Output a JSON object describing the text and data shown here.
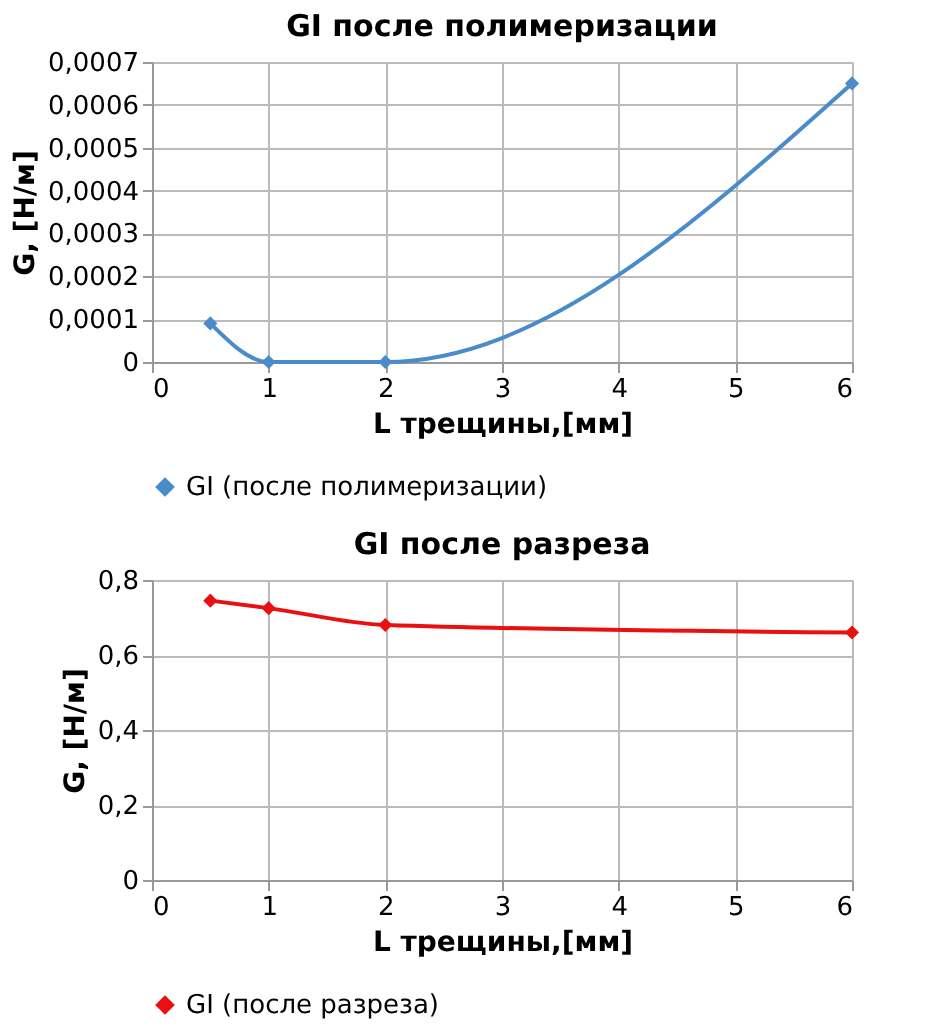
{
  "chart_data": [
    {
      "type": "line",
      "title": "GI после полимеризации",
      "xlabel": "L трещины,[мм]",
      "ylabel": "G, [Н/м]",
      "x": [
        0.5,
        1,
        2,
        6
      ],
      "series": [
        {
          "name": "GI (после полимеризации)",
          "color": "#4a8cc9",
          "values": [
            9e-05,
            0,
            0,
            0.00065
          ]
        }
      ],
      "xlim": [
        0,
        6
      ],
      "xticks": [
        0,
        1,
        2,
        3,
        4,
        5,
        6
      ],
      "ylim": [
        0,
        0.0007
      ],
      "yticks": [
        0,
        {
          "value": 0.0001,
          "label": "0,0001"
        },
        {
          "value": 0.0002,
          "label": "0,0002"
        },
        {
          "value": 0.0003,
          "label": "0,0003"
        },
        {
          "value": 0.0004,
          "label": "0,0004"
        },
        {
          "value": 0.0005,
          "label": "0,0005"
        },
        {
          "value": 0.0006,
          "label": "0,0006"
        },
        {
          "value": 0.0007,
          "label": "0,0007"
        }
      ],
      "grid": true,
      "legend": "bottom",
      "marker": "diamond",
      "line_style": "solid"
    },
    {
      "type": "line",
      "title": "GI после разреза",
      "xlabel": "L трещины,[мм]",
      "ylabel": "G, [Н/м]",
      "x": [
        0.5,
        1,
        2,
        6
      ],
      "series": [
        {
          "name": "GI (после разреза)",
          "color": "#e81010",
          "values": [
            0.745,
            0.725,
            0.68,
            0.66
          ]
        }
      ],
      "xlim": [
        0,
        6
      ],
      "xticks": [
        0,
        1,
        2,
        3,
        4,
        5,
        6
      ],
      "ylim": [
        0,
        0.8
      ],
      "yticks": [
        0,
        {
          "value": 0.2,
          "label": "0,2"
        },
        {
          "value": 0.4,
          "label": "0,4"
        },
        {
          "value": 0.6,
          "label": "0,6"
        },
        {
          "value": 0.8,
          "label": "0,8"
        }
      ],
      "grid": true,
      "legend": "bottom",
      "marker": "diamond",
      "line_style": "solid"
    }
  ]
}
